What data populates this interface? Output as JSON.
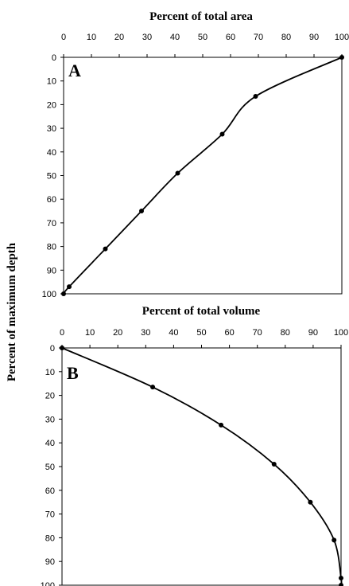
{
  "ylabel": "Percent of maximum depth",
  "chart_data": [
    {
      "type": "line",
      "panel": "A",
      "title": "Percent of total area",
      "xlim": [
        0,
        100
      ],
      "ylim": [
        0,
        100
      ],
      "y_inverted": true,
      "x_axis_position": "top",
      "grid": false,
      "x_ticks": [
        "0",
        "10",
        "20",
        "30",
        "40",
        "50",
        "60",
        "70",
        "80",
        "90",
        "100"
      ],
      "y_ticks": [
        "0",
        "10",
        "20",
        "30",
        "40",
        "50",
        "60",
        "70",
        "80",
        "90",
        "100"
      ],
      "series": [
        {
          "x": [
            100,
            69,
            57,
            41,
            28,
            15,
            2,
            0
          ],
          "y": [
            0,
            16.5,
            32.5,
            49,
            65,
            81,
            97,
            100
          ]
        }
      ]
    },
    {
      "type": "line",
      "panel": "B",
      "title": "Percent of total volume",
      "xlim": [
        0,
        100
      ],
      "ylim": [
        0,
        100
      ],
      "y_inverted": true,
      "x_axis_position": "top",
      "grid": false,
      "x_ticks": [
        "0",
        "10",
        "20",
        "30",
        "40",
        "50",
        "60",
        "70",
        "80",
        "90",
        "100"
      ],
      "y_ticks": [
        "0",
        "10",
        "20",
        "30",
        "40",
        "50",
        "60",
        "70",
        "80",
        "90",
        "100"
      ],
      "series": [
        {
          "x": [
            0,
            32.5,
            57,
            76,
            89,
            97.5,
            100,
            100
          ],
          "y": [
            0,
            16.5,
            32.5,
            49,
            65,
            81,
            97,
            100
          ]
        }
      ]
    }
  ]
}
